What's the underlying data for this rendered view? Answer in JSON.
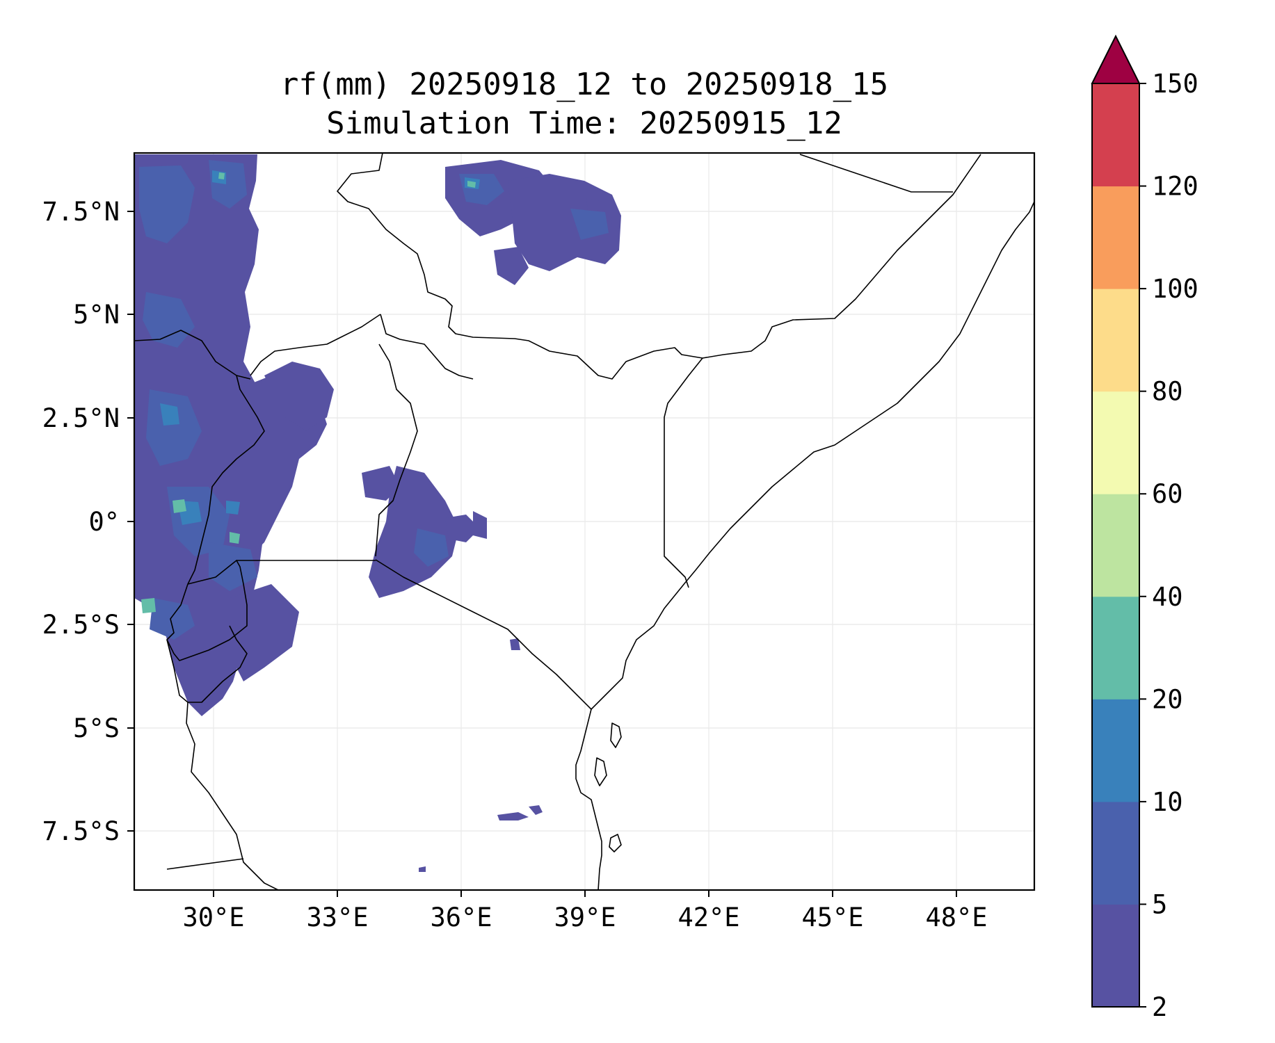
{
  "title": {
    "line1": "rf(mm) 20250918_12 to 20250918_15",
    "line2": "Simulation Time: 20250915_12"
  },
  "map": {
    "region": "East Africa",
    "lon_range": [
      28.1,
      49.9
    ],
    "lat_range": [
      -8.9,
      8.9
    ],
    "lon_ticks": [
      "30°E",
      "33°E",
      "36°E",
      "39°E",
      "42°E",
      "45°E",
      "48°E"
    ],
    "lat_ticks": [
      "7.5°N",
      "5°N",
      "2.5°N",
      "0°",
      "2.5°S",
      "5°S",
      "7.5°S"
    ],
    "gridlines": true,
    "rain_field_present_in": [
      "west (Congo/Uganda/Rwanda/Burundi)",
      "south-west Ethiopia",
      "western Kenya",
      "Lake Victoria basin"
    ]
  },
  "colorbar": {
    "label": "",
    "tick_labels": [
      "2",
      "5",
      "10",
      "20",
      "40",
      "60",
      "80",
      "100",
      "120",
      "150"
    ],
    "levels": [
      2,
      5,
      10,
      20,
      40,
      60,
      80,
      100,
      120,
      150
    ],
    "colors": [
      "#5752a2",
      "#4a61ad",
      "#3981bb",
      "#63bda8",
      "#bde4a0",
      "#f3fab1",
      "#fddc8a",
      "#f99d5c",
      "#d4404f",
      "#9e0142"
    ],
    "extend": "max"
  }
}
